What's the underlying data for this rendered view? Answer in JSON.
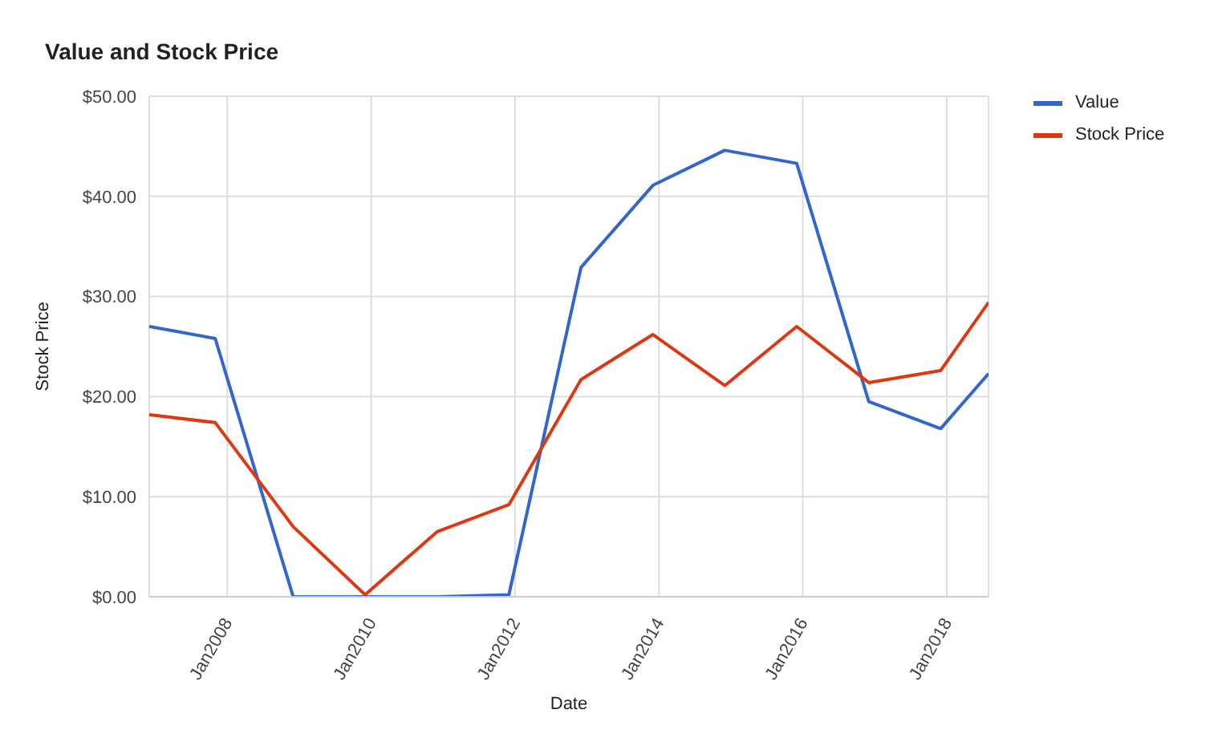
{
  "chart_data": {
    "type": "line",
    "title": "Value and Stock Price",
    "xlabel": "Date",
    "ylabel": "Stock Price",
    "x": [
      "2006-12",
      "2007-11",
      "2008-12",
      "2009-12",
      "2010-12",
      "2011-12",
      "2012-12",
      "2013-12",
      "2014-12",
      "2015-12",
      "2016-12",
      "2017-12",
      "2018-08"
    ],
    "series": [
      {
        "name": "Value",
        "color": "#3366cc",
        "values": [
          27.0,
          25.8,
          0,
          0,
          0,
          0.2,
          32.9,
          41.1,
          44.6,
          43.3,
          19.5,
          16.8,
          22.3
        ]
      },
      {
        "name": "Stock Price",
        "color": "#dc3912",
        "values": [
          18.2,
          17.4,
          7.0,
          0.2,
          6.5,
          9.2,
          21.7,
          26.2,
          21.1,
          27.0,
          21.4,
          22.6,
          29.4
        ]
      }
    ],
    "xlim": [
      "2006-12",
      "2018-08"
    ],
    "xticks": [
      {
        "value": "2008-01",
        "label": "Jan2008"
      },
      {
        "value": "2010-01",
        "label": "Jan2010"
      },
      {
        "value": "2012-01",
        "label": "Jan2012"
      },
      {
        "value": "2014-01",
        "label": "Jan2014"
      },
      {
        "value": "2016-01",
        "label": "Jan2016"
      },
      {
        "value": "2018-01",
        "label": "Jan2018"
      }
    ],
    "ylim": [
      0,
      50
    ],
    "yticks": [
      {
        "value": 0,
        "label": "$0.00"
      },
      {
        "value": 10,
        "label": "$10.00"
      },
      {
        "value": 20,
        "label": "$20.00"
      },
      {
        "value": 30,
        "label": "$30.00"
      },
      {
        "value": 40,
        "label": "$40.00"
      },
      {
        "value": 50,
        "label": "$50.00"
      }
    ],
    "grid": true,
    "legend": "top right",
    "marker": "none",
    "line_style": "solid"
  }
}
